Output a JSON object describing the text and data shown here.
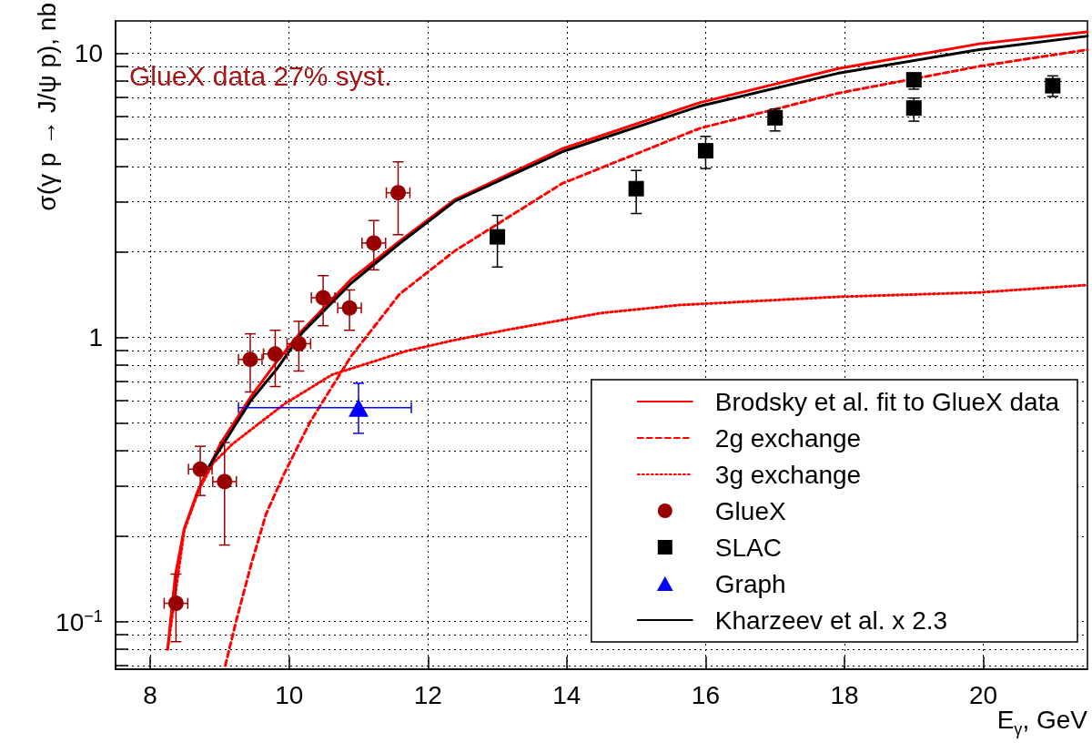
{
  "chart_data": {
    "type": "line",
    "xlabel": "E$_{γ}$, GeV",
    "ylabel": "σ(γ p → J/ψ p), nb",
    "annotations": [
      "GlueX data 27% syst."
    ],
    "xlim": [
      7.5,
      21.5
    ],
    "xticks": [
      8,
      10,
      12,
      14,
      16,
      18,
      20
    ],
    "ylim": [
      0.068,
      13
    ],
    "log": "y",
    "yticks": [
      {
        "value": 0.07,
        "label": null
      },
      {
        "value": 0.08,
        "label": null
      },
      {
        "value": 0.09,
        "label": null
      },
      {
        "value": 0.1,
        "label": "10$^{−1}$"
      },
      {
        "value": 0.2,
        "label": null
      },
      {
        "value": 0.3,
        "label": null
      },
      {
        "value": 0.4,
        "label": null
      },
      {
        "value": 0.5,
        "label": null
      },
      {
        "value": 0.6,
        "label": null
      },
      {
        "value": 0.7,
        "label": null
      },
      {
        "value": 0.8,
        "label": null
      },
      {
        "value": 0.9,
        "label": null
      },
      1,
      {
        "value": 2,
        "label": null
      },
      {
        "value": 3,
        "label": null
      },
      {
        "value": 4,
        "label": null
      },
      {
        "value": 5,
        "label": null
      },
      {
        "value": 6,
        "label": null
      },
      {
        "value": 7,
        "label": null
      },
      {
        "value": 8,
        "label": null
      },
      {
        "value": 9,
        "label": null
      },
      10
    ],
    "grid": true,
    "legend": "bottom right",
    "series": [
      {
        "name": "Brodsky et al. fit to GlueX data",
        "color": "#ff0000",
        "line_style": "solid",
        "marker": "none",
        "x": [
          8.25,
          8.36,
          8.49,
          8.7,
          9.02,
          9.45,
          9.82,
          10.19,
          10.89,
          11.59,
          12.39,
          13.93,
          15.92,
          17.9,
          19.94,
          21.5
        ],
        "values": [
          0.08,
          0.145,
          0.213,
          0.295,
          0.427,
          0.619,
          0.821,
          1.06,
          1.6,
          2.18,
          3.06,
          4.61,
          6.71,
          8.83,
          10.8,
          11.9
        ]
      },
      {
        "name": "2g exchange",
        "color": "#ff0000",
        "line_style": "dashed",
        "marker": "none",
        "x": [
          9.08,
          9.24,
          9.45,
          9.67,
          9.93,
          10.3,
          10.89,
          11.59,
          12.39,
          13.93,
          15.92,
          17.9,
          19.94,
          21.5
        ],
        "values": [
          0.07,
          0.101,
          0.158,
          0.24,
          0.332,
          0.503,
          0.857,
          1.42,
          2.02,
          3.48,
          5.45,
          7.23,
          9.0,
          10.3
        ]
      },
      {
        "name": "3g exchange",
        "color": "#ff0000",
        "line_style": "dotted",
        "marker": "none",
        "x": [
          8.25,
          8.49,
          8.7,
          8.9,
          9.18,
          9.93,
          10.62,
          11.69,
          12.39,
          13.2,
          14.5,
          15.61,
          17.9,
          19.94,
          21.5
        ],
        "values": [
          0.08,
          0.21,
          0.29,
          0.36,
          0.421,
          0.583,
          0.74,
          0.896,
          0.98,
          1.07,
          1.22,
          1.3,
          1.39,
          1.44,
          1.53
        ]
      },
      {
        "name": "GlueX",
        "type": "scatter",
        "color": "#990000",
        "marker": "circle",
        "x": [
          8.37,
          8.72,
          9.07,
          9.44,
          9.8,
          10.14,
          10.49,
          10.87,
          11.22,
          11.57
        ],
        "values": [
          0.116,
          0.344,
          0.311,
          0.837,
          0.875,
          0.951,
          1.38,
          1.27,
          2.15,
          3.23
        ],
        "errors": [
          [
            0.085,
            0.147
          ],
          [
            0.278,
            0.414
          ],
          [
            0.186,
            0.427
          ],
          [
            0.643,
            1.03
          ],
          [
            0.672,
            1.06
          ],
          [
            0.762,
            1.14
          ],
          [
            1.1,
            1.65
          ],
          [
            1.06,
            1.47
          ],
          [
            1.73,
            2.58
          ],
          [
            2.3,
            4.15
          ]
        ],
        "xerrors": [
          0.17,
          0.17,
          0.17,
          0.17,
          0.17,
          0.17,
          0.17,
          0.17,
          0.17,
          0.17
        ]
      },
      {
        "name": "SLAC",
        "type": "scatter",
        "color": "#000000",
        "marker": "square",
        "x": [
          13,
          15,
          16,
          17,
          19,
          19,
          21
        ],
        "values": [
          2.26,
          3.34,
          4.54,
          5.93,
          8.07,
          6.42,
          7.69
        ],
        "errors": [
          [
            1.77,
            2.69
          ],
          [
            2.73,
            3.87
          ],
          [
            3.93,
            5.1
          ],
          [
            5.33,
            6.37
          ],
          [
            7.48,
            8.49
          ],
          [
            5.77,
            6.96
          ],
          [
            7.05,
            8.33
          ]
        ]
      },
      {
        "name": "Graph",
        "type": "scatter",
        "color": "#0000ff",
        "marker": "triangle",
        "x": [
          11
        ],
        "values": [
          0.566
        ],
        "errors": [
          [
            0.46,
            0.69
          ]
        ],
        "xerrors": [
          [
            9.27,
            11.76
          ]
        ]
      },
      {
        "name": "Kharzeev et al. x 2.3",
        "color": "#000000",
        "line_style": "solid",
        "marker": "none",
        "x": [
          8.85,
          9.45,
          9.82,
          10.19,
          10.89,
          11.59,
          12.39,
          13.93,
          15.92,
          17.9,
          19.94,
          21.5
        ],
        "values": [
          0.353,
          0.6,
          0.773,
          1.04,
          1.55,
          2.14,
          3.02,
          4.5,
          6.52,
          8.5,
          10.3,
          11.5
        ]
      }
    ]
  }
}
